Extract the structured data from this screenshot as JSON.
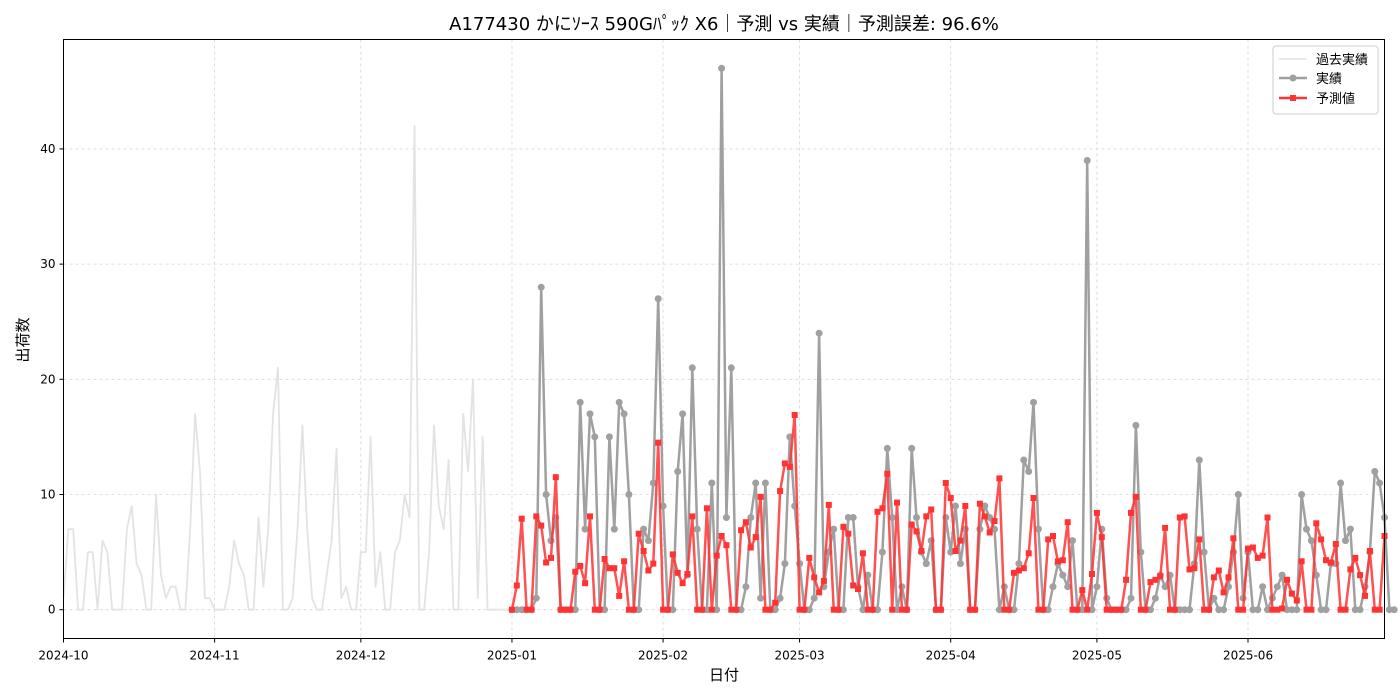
{
  "chart_data": {
    "type": "line",
    "title": "A177430 かにｿｰｽ 590Gﾊﾟｯｸ X6｜予測 vs 実績｜予測誤差: 96.6%",
    "xlabel": "日付",
    "ylabel": "出荷数",
    "xlim": [
      "2024-10-01",
      "2025-06-29"
    ],
    "ylim": [
      -2.5,
      49.5
    ],
    "grid": true,
    "legend_position": "top-right",
    "x_ticks": [
      "2024-10",
      "2024-11",
      "2024-12",
      "2025-01",
      "2025-02",
      "2025-03",
      "2025-04",
      "2025-05",
      "2025-06"
    ],
    "y_ticks": [
      0,
      10,
      20,
      30,
      40
    ],
    "colors": {
      "history": "#e3e3e3",
      "actual": "#a0a0a0",
      "forecast": "#ff3333"
    },
    "series": [
      {
        "name": "過去実績",
        "start": "2024-10-01",
        "values": [
          1,
          7,
          7,
          0,
          0,
          5,
          5,
          0,
          6,
          5,
          0,
          0,
          0,
          7,
          9,
          4,
          3,
          0,
          0,
          10,
          3,
          1,
          2,
          2,
          0,
          0,
          7,
          17,
          12,
          1,
          1,
          0,
          0,
          0,
          2,
          6,
          4,
          3,
          0,
          0,
          8,
          2,
          7,
          17,
          21,
          0,
          0,
          1,
          7,
          16,
          7,
          1,
          0,
          0,
          3,
          6,
          14,
          1,
          2,
          0,
          0,
          5,
          5,
          15,
          2,
          5,
          0,
          0,
          5,
          6,
          10,
          8,
          42,
          0,
          0,
          5,
          16,
          9,
          7,
          13,
          0,
          0,
          17,
          12,
          20,
          1,
          15,
          0,
          0,
          0,
          0,
          0,
          0
        ]
      },
      {
        "name": "実績",
        "start": "2025-01-01",
        "values": [
          0,
          0,
          0,
          0,
          0,
          1,
          28,
          10,
          6,
          8,
          0,
          0,
          0,
          0,
          18,
          7,
          17,
          15,
          0,
          0,
          15,
          7,
          18,
          17,
          10,
          0,
          0,
          7,
          6,
          11,
          27,
          9,
          0,
          0,
          12,
          17,
          3,
          21,
          7,
          0,
          0,
          11,
          0,
          47,
          8,
          21,
          0,
          0,
          2,
          8,
          11,
          1,
          11,
          0,
          0,
          1,
          4,
          15,
          9,
          4,
          0,
          0,
          1,
          24,
          2,
          5,
          7,
          0,
          0,
          8,
          8,
          2,
          0,
          3,
          0,
          0,
          5,
          14,
          8,
          0,
          2,
          0,
          14,
          8,
          5,
          4,
          6,
          0,
          0,
          8,
          5,
          9,
          4,
          7,
          0,
          0,
          7,
          9,
          8,
          7,
          0,
          2,
          0,
          0,
          4,
          13,
          12,
          18,
          7,
          0,
          0,
          2,
          4,
          3,
          2,
          6,
          0,
          0,
          39,
          0,
          2,
          7,
          1,
          0,
          0,
          0,
          0,
          1,
          16,
          5,
          0,
          0,
          1,
          3,
          2,
          3,
          0,
          0,
          0,
          0,
          4,
          13,
          5,
          0,
          1,
          0,
          0,
          2,
          5,
          10,
          1,
          5,
          0,
          0,
          2,
          0,
          1,
          2,
          3,
          0,
          0,
          0,
          10,
          7,
          6,
          3,
          0,
          0,
          4,
          4,
          11,
          6,
          7,
          0,
          0,
          2,
          5,
          12,
          11,
          8,
          0,
          0
        ]
      },
      {
        "name": "予測値",
        "start": "2025-01-01",
        "values": [
          0,
          2.1,
          7.9,
          0,
          0,
          8.1,
          7.3,
          4.1,
          4.5,
          11.5,
          0,
          0,
          0,
          3.3,
          3.8,
          2.3,
          8.1,
          0,
          0,
          4.4,
          3.6,
          3.6,
          1.2,
          4.2,
          0,
          0,
          6.6,
          5.1,
          3.4,
          4,
          14.5,
          0,
          0,
          4.8,
          3.2,
          2.3,
          3.1,
          8.1,
          0,
          0,
          8.8,
          0,
          4.7,
          6.4,
          5.6,
          0,
          0,
          6.9,
          7.6,
          5.4,
          6.3,
          9.8,
          0,
          0,
          0.6,
          10.3,
          12.7,
          12.4,
          16.9,
          0,
          0,
          4.5,
          2.8,
          1.5,
          2.5,
          9.1,
          0,
          0,
          7.2,
          6.6,
          2.1,
          1.8,
          4.9,
          0,
          0,
          8.5,
          8.8,
          11.8,
          0,
          9.3,
          0,
          0,
          7.4,
          6.8,
          5.1,
          8.1,
          8.7,
          0,
          0,
          11,
          9.7,
          5.1,
          6,
          9,
          0,
          0,
          9.2,
          8.1,
          6.7,
          7.7,
          11.4,
          0,
          0,
          3.2,
          3.4,
          3.6,
          4.9,
          9.7,
          0,
          0,
          6.1,
          6.4,
          4.2,
          4.3,
          7.6,
          0,
          0,
          1.7,
          0,
          3.1,
          8.4,
          6.3,
          0,
          0,
          0,
          0,
          2.6,
          8.4,
          9.8,
          0,
          0,
          2.4,
          2.6,
          2.9,
          7.1,
          0,
          0,
          8,
          8.1,
          3.5,
          3.6,
          6.1,
          0,
          0,
          2.8,
          3.4,
          1.5,
          2.8,
          6.2,
          0,
          0,
          5.3,
          5.4,
          4.5,
          4.7,
          8,
          0,
          0,
          0.1,
          2.6,
          1.4,
          0.8,
          4.2,
          0,
          0,
          7.5,
          6.1,
          4.3,
          4.1,
          5.7,
          0,
          0,
          3.5,
          4.5,
          3,
          1.2,
          5.1,
          0,
          0,
          6.4
        ]
      }
    ]
  }
}
